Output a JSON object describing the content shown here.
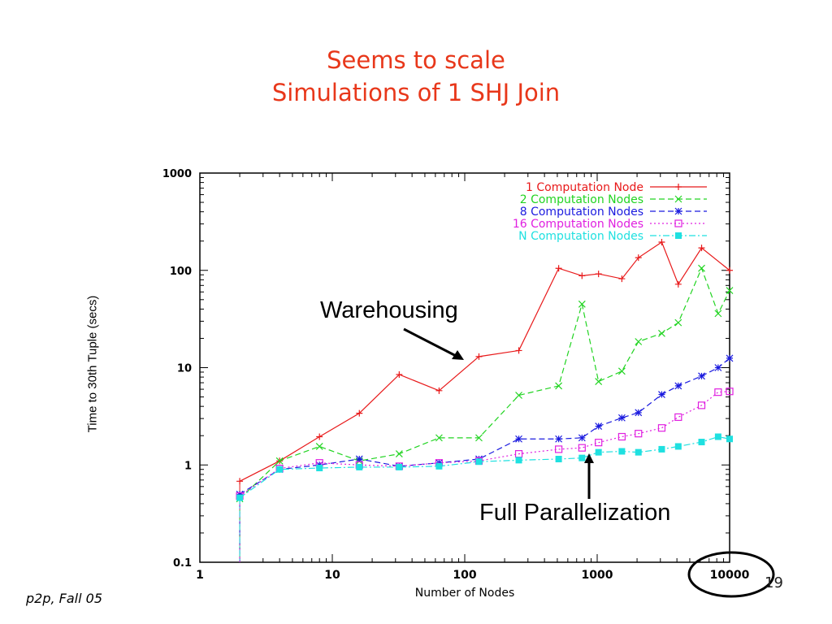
{
  "slide": {
    "title_line1": "Seems to scale",
    "title_line2": "Simulations of 1 SHJ Join",
    "footer": "p2p, Fall 05",
    "page_number": "19",
    "annotation_warehousing": "Warehousing",
    "annotation_parallel": "Full Parallelization",
    "title_color": "#e8371a"
  },
  "chart_data": {
    "type": "line",
    "xlabel": "Number of Nodes",
    "ylabel": "Time to 30th Tuple (secs)",
    "x_scale": "log",
    "y_scale": "log",
    "xlim": [
      1,
      10000
    ],
    "ylim": [
      0.1,
      1000
    ],
    "x_ticks": [
      "1",
      "10",
      "100",
      "1000",
      "10000"
    ],
    "y_ticks": [
      "0.1",
      "1",
      "10",
      "100",
      "1000"
    ],
    "legend_position": "top-right",
    "grid": false,
    "highlighted_tick": "10000",
    "x": [
      2,
      4,
      8,
      16,
      32,
      64,
      128,
      256,
      512,
      768,
      1024,
      1536,
      2048,
      3072,
      4096,
      6144,
      8192,
      10000
    ],
    "series": [
      {
        "name": "1 Computation Node",
        "color": "#e8191a",
        "marker": "plus",
        "dash": "solid",
        "values": [
          0.68,
          1.1,
          1.95,
          3.4,
          8.5,
          5.8,
          13,
          15,
          105,
          88,
          92,
          82,
          135,
          195,
          72,
          170,
          null,
          100
        ]
      },
      {
        "name": "2 Computation Nodes",
        "color": "#22d422",
        "marker": "x",
        "dash": "dashed",
        "values": [
          0.45,
          1.1,
          1.55,
          1.1,
          1.3,
          1.9,
          1.9,
          5.2,
          6.5,
          45,
          7.2,
          9.2,
          18.5,
          22.5,
          29,
          105,
          36,
          62
        ]
      },
      {
        "name": "8 Computation Nodes",
        "color": "#1b1bdf",
        "marker": "star",
        "dash": "dashed",
        "values": [
          0.5,
          0.9,
          1.0,
          1.15,
          0.97,
          1.05,
          1.15,
          1.85,
          1.85,
          1.9,
          2.5,
          3.05,
          3.45,
          5.3,
          6.5,
          8.2,
          10,
          12.5
        ]
      },
      {
        "name": "16 Computation Nodes",
        "color": "#e020e0",
        "marker": "square-open",
        "dash": "dotted",
        "values": [
          0.48,
          0.92,
          1.05,
          1.0,
          0.97,
          1.05,
          1.1,
          1.3,
          1.45,
          1.5,
          1.7,
          1.95,
          2.1,
          2.4,
          3.1,
          4.1,
          5.6,
          5.7
        ]
      },
      {
        "name": "N Computation Nodes",
        "color": "#1fe0e0",
        "marker": "square-filled",
        "dash": "dashdot",
        "values": [
          0.46,
          0.9,
          0.93,
          0.95,
          0.95,
          0.97,
          1.08,
          1.12,
          1.15,
          1.18,
          1.35,
          1.38,
          1.35,
          1.45,
          1.55,
          1.72,
          1.95,
          1.85
        ]
      }
    ]
  }
}
